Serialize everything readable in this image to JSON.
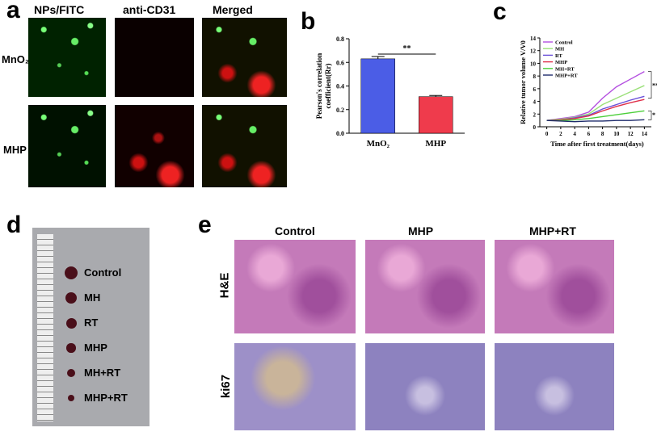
{
  "panel_a": {
    "label": "a",
    "columns": [
      "NPs/FITC",
      "anti-CD31",
      "Merged"
    ],
    "rows": [
      "MnO₂",
      "MHP"
    ]
  },
  "panel_d": {
    "label": "d",
    "samples": [
      "Control",
      "MH",
      "RT",
      "MHP",
      "MH+RT",
      "MHP+RT"
    ]
  },
  "panel_e": {
    "label": "e",
    "columns": [
      "Control",
      "MHP",
      "MHP+RT"
    ],
    "rows": [
      "H&E",
      "ki67"
    ]
  },
  "chart_data": [
    {
      "type": "bar",
      "panel_label": "b",
      "y_label_lines": [
        "Pearson's correlation",
        "coefficient(Rr)"
      ],
      "categories": [
        "MnO₂",
        "MHP"
      ],
      "values": [
        0.63,
        0.31
      ],
      "errors": [
        0.02,
        0.01
      ],
      "colors": [
        "#4b5de6",
        "#ef3b4c"
      ],
      "ylim": [
        0,
        0.8
      ],
      "yticks": [
        {
          "value": 0,
          "label": "0.0"
        },
        0.2,
        0.4,
        0.6,
        0.8
      ],
      "annotation": "**"
    },
    {
      "type": "line",
      "panel_label": "c",
      "x_label": "Time after first treatment(days)",
      "y_label": "Relative tumor volume V/V0",
      "x": [
        0,
        2,
        4,
        6,
        8,
        10,
        12,
        14
      ],
      "xlim": [
        -1,
        15
      ],
      "xticks": [
        0,
        2,
        4,
        6,
        8,
        10,
        12,
        14
      ],
      "ylim": [
        0,
        14
      ],
      "yticks": [
        0,
        2,
        4,
        6,
        8,
        10,
        12,
        14
      ],
      "series": [
        {
          "name": "Control",
          "color": "#b44fe0",
          "values": [
            1,
            1.3,
            1.6,
            2.3,
            4.5,
            6.3,
            7.5,
            8.7
          ]
        },
        {
          "name": "MH",
          "color": "#9be07a",
          "values": [
            1,
            1.2,
            1.5,
            2,
            3.5,
            4.5,
            5.5,
            6.5
          ]
        },
        {
          "name": "RT",
          "color": "#6a4fd8",
          "values": [
            1,
            1.1,
            1.4,
            1.8,
            2.8,
            3.5,
            4.2,
            4.8
          ]
        },
        {
          "name": "MHP",
          "color": "#e0304a",
          "values": [
            1,
            1.1,
            1.3,
            1.7,
            2.5,
            3.2,
            3.8,
            4.3
          ]
        },
        {
          "name": "MH+RT",
          "color": "#4ccf3a",
          "values": [
            1,
            1,
            1.1,
            1.3,
            1.6,
            1.9,
            2.2,
            2.5
          ]
        },
        {
          "name": "MHP+RT",
          "color": "#1d2a6b",
          "values": [
            1,
            0.9,
            0.8,
            0.9,
            0.9,
            1,
            1,
            1.1
          ]
        }
      ],
      "annotations": [
        "**",
        "*"
      ]
    }
  ]
}
